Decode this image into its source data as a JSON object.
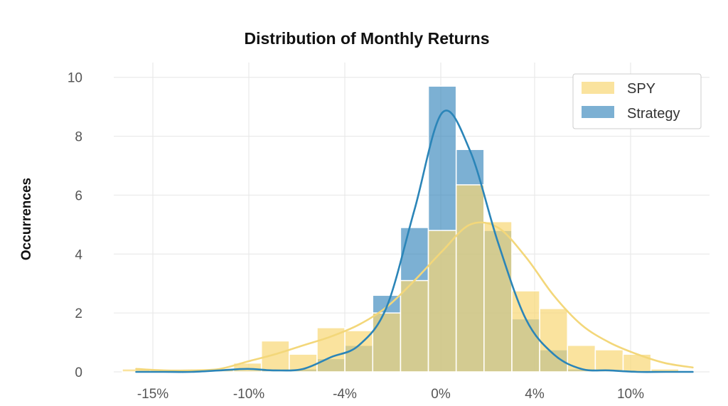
{
  "chart_data": {
    "type": "histogram",
    "title": "Distribution of Monthly Returns",
    "xlabel": "",
    "ylabel": "Occurrences",
    "ylim": [
      0,
      10.5
    ],
    "yticks": [
      0,
      2,
      4,
      6,
      8,
      10
    ],
    "xticks": [
      "-15%",
      "-10%",
      "-4%",
      "0%",
      "4%",
      "10%"
    ],
    "grid": true,
    "legend_position": "top-right",
    "bin_count": 21,
    "series": [
      {
        "name": "SPY",
        "color": "#f8d775",
        "counts": [
          0.1,
          0.05,
          0.05,
          0.1,
          0.3,
          1.05,
          0.6,
          1.5,
          1.4,
          2.0,
          3.1,
          4.8,
          6.35,
          5.1,
          2.75,
          2.15,
          0.9,
          0.75,
          0.6,
          0.1,
          0
        ],
        "kde": [
          0.1,
          0.05,
          0.05,
          0.1,
          0.35,
          0.6,
          0.9,
          1.2,
          1.6,
          2.2,
          3.1,
          4.1,
          5.0,
          4.9,
          3.9,
          2.6,
          1.6,
          1.0,
          0.6,
          0.3,
          0.15
        ]
      },
      {
        "name": "Strategy",
        "color": "#2c7fb8",
        "counts": [
          0,
          0,
          0,
          0.05,
          0.05,
          0.1,
          0.1,
          0.45,
          0.9,
          2.6,
          4.9,
          9.7,
          7.55,
          4.8,
          1.8,
          0.75,
          0.1,
          0,
          0,
          0,
          0
        ],
        "kde": [
          0,
          0,
          0,
          0.05,
          0.1,
          0.05,
          0.1,
          0.5,
          0.9,
          2.2,
          5.5,
          8.8,
          7.5,
          4.4,
          1.8,
          0.6,
          0.1,
          0.05,
          0,
          0,
          0
        ]
      }
    ]
  }
}
